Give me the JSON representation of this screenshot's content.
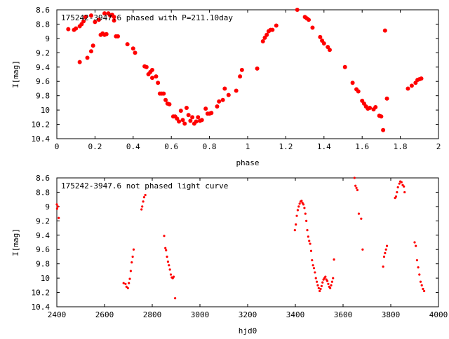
{
  "chart_data": [
    {
      "type": "scatter",
      "title": "175242-3947.6 phased with P=211.10day",
      "xlabel": "phase",
      "ylabel": "I[mag]",
      "xlim": [
        0,
        2
      ],
      "ylim": [
        10.4,
        8.6
      ],
      "y_inverted": true,
      "xticks": [
        0,
        0.2,
        0.4,
        0.6,
        0.8,
        1,
        1.2,
        1.4,
        1.6,
        1.8,
        2
      ],
      "xtick_labels": [
        "0",
        "0.2",
        "0.4",
        "0.6",
        "0.8",
        "1",
        "1.2",
        "1.4",
        "1.6",
        "1.8",
        "2"
      ],
      "yticks": [
        8.6,
        8.8,
        9,
        9.2,
        9.4,
        9.6,
        9.8,
        10,
        10.2,
        10.4
      ],
      "ytick_labels": [
        "8.6",
        "8.8",
        "9",
        "9.2",
        "9.4",
        "9.6",
        "9.8",
        "10",
        "10.2",
        "10.4"
      ],
      "grid": false,
      "marker": "filled-circle",
      "color": "#ff0000",
      "series": [
        {
          "x": [
            0.06,
            0.09,
            0.1,
            0.12,
            0.12,
            0.13,
            0.14,
            0.15,
            0.16,
            0.18,
            0.18,
            0.19,
            0.2,
            0.22,
            0.23,
            0.24,
            0.25,
            0.25,
            0.26,
            0.27,
            0.28,
            0.29,
            0.3,
            0.3,
            0.31,
            0.32,
            0.37,
            0.4,
            0.41,
            0.46,
            0.47,
            0.48,
            0.49,
            0.5,
            0.5,
            0.52,
            0.53,
            0.54,
            0.55,
            0.56,
            0.57,
            0.58,
            0.59,
            0.61,
            0.62,
            0.63,
            0.64,
            0.65,
            0.66,
            0.67,
            0.68,
            0.69,
            0.7,
            0.71,
            0.72,
            0.73,
            0.74,
            0.75,
            0.76,
            0.78,
            0.79,
            0.8,
            0.81,
            0.84,
            0.85,
            0.87,
            0.88,
            0.9,
            0.94,
            0.96,
            0.97,
            1.05,
            1.08,
            1.09,
            1.1,
            1.11,
            1.12,
            1.13,
            1.15,
            1.26,
            1.3,
            1.31,
            1.32,
            1.34,
            1.38,
            1.39,
            1.4,
            1.42,
            1.43,
            1.51,
            1.55,
            1.57,
            1.58,
            1.6,
            1.61,
            1.62,
            1.63,
            1.64,
            1.66,
            1.67,
            1.69,
            1.7,
            1.71,
            1.72,
            1.73,
            1.84,
            1.86,
            1.88,
            1.89,
            1.9,
            1.91
          ],
          "y": [
            8.87,
            8.88,
            8.86,
            9.33,
            8.83,
            8.8,
            8.76,
            8.7,
            9.27,
            8.68,
            9.18,
            9.1,
            8.77,
            8.74,
            8.95,
            8.93,
            8.95,
            8.65,
            8.94,
            8.65,
            8.68,
            8.67,
            8.7,
            8.75,
            8.97,
            8.97,
            9.08,
            9.14,
            9.2,
            9.39,
            9.4,
            9.5,
            9.47,
            9.55,
            9.44,
            9.53,
            9.62,
            9.77,
            9.77,
            9.77,
            9.86,
            9.91,
            9.92,
            10.09,
            10.09,
            10.12,
            10.16,
            10.01,
            10.14,
            10.19,
            9.97,
            10.07,
            10.15,
            10.1,
            10.19,
            10.16,
            10.1,
            10.15,
            10.14,
            9.98,
            10.05,
            10.05,
            10.04,
            9.95,
            9.88,
            9.86,
            9.7,
            9.79,
            9.73,
            9.53,
            9.44,
            9.42,
            9.04,
            8.99,
            8.95,
            8.9,
            8.88,
            8.88,
            8.82,
            8.6,
            8.7,
            8.72,
            8.74,
            8.85,
            8.98,
            9.03,
            9.07,
            9.12,
            9.16,
            9.4,
            9.62,
            9.71,
            9.74,
            9.87,
            9.91,
            9.95,
            9.98,
            9.97,
            9.99,
            9.96,
            10.08,
            10.09,
            10.28,
            8.89,
            9.84,
            9.7,
            9.66,
            9.62,
            9.58,
            9.57,
            9.56
          ]
        }
      ]
    },
    {
      "type": "scatter",
      "title": "175242-3947.6 not phased light curve",
      "xlabel": "hjd0",
      "ylabel": "I[mag]",
      "xlim": [
        2400,
        4000
      ],
      "ylim": [
        10.4,
        8.6
      ],
      "y_inverted": true,
      "xticks": [
        2400,
        2600,
        2800,
        3000,
        3200,
        3400,
        3600,
        3800,
        4000
      ],
      "xtick_labels": [
        "2400",
        "2600",
        "2800",
        "3000",
        "3200",
        "3400",
        "3600",
        "3800",
        "4000"
      ],
      "yticks": [
        8.6,
        8.8,
        9,
        9.2,
        9.4,
        9.6,
        9.8,
        10,
        10.2,
        10.4
      ],
      "ytick_labels": [
        "8.6",
        "8.8",
        "9",
        "9.2",
        "9.4",
        "9.6",
        "9.8",
        "10",
        "10.2",
        "10.4"
      ],
      "grid": false,
      "marker": "small-dot",
      "color": "#ff0000",
      "series": [
        {
          "x": [
            2400,
            2401,
            2404,
            2408,
            2680,
            2688,
            2692,
            2698,
            2702,
            2706,
            2710,
            2714,
            2718,
            2722,
            2755,
            2758,
            2762,
            2766,
            2771,
            2850,
            2855,
            2858,
            2862,
            2866,
            2870,
            2874,
            2878,
            2882,
            2886,
            2890,
            2896,
            3398,
            3402,
            3406,
            3410,
            3414,
            3418,
            3422,
            3426,
            3430,
            3434,
            3438,
            3442,
            3446,
            3450,
            3454,
            3458,
            3462,
            3466,
            3470,
            3474,
            3478,
            3482,
            3486,
            3490,
            3494,
            3498,
            3502,
            3506,
            3510,
            3514,
            3518,
            3522,
            3526,
            3530,
            3534,
            3538,
            3542,
            3546,
            3550,
            3554,
            3558,
            3562,
            3648,
            3652,
            3656,
            3660,
            3666,
            3676,
            3682,
            3768,
            3772,
            3776,
            3780,
            3784,
            3818,
            3822,
            3826,
            3830,
            3836,
            3840,
            3845,
            3850,
            3855,
            3858,
            3900,
            3905,
            3910,
            3915,
            3920,
            3925,
            3930,
            3935,
            3940
          ],
          "y": [
            8.97,
            9.03,
            9.0,
            9.16,
            10.07,
            10.08,
            10.12,
            10.14,
            10.07,
            10.01,
            9.9,
            9.78,
            9.7,
            9.6,
            9.04,
            9.0,
            8.93,
            8.87,
            8.84,
            9.41,
            9.58,
            9.61,
            9.7,
            9.77,
            9.82,
            9.88,
            9.95,
            9.99,
            10.0,
            9.98,
            10.28,
            9.33,
            9.25,
            9.13,
            9.05,
            9.0,
            8.96,
            8.93,
            8.92,
            8.95,
            8.97,
            9.02,
            9.1,
            9.2,
            9.33,
            9.42,
            9.48,
            9.52,
            9.62,
            9.75,
            9.82,
            9.86,
            9.92,
            10.0,
            10.05,
            10.1,
            10.14,
            10.18,
            10.15,
            10.11,
            10.06,
            10.02,
            10.0,
            9.98,
            10.02,
            10.04,
            10.08,
            10.12,
            10.14,
            10.1,
            10.05,
            10.0,
            9.74,
            8.6,
            8.71,
            8.74,
            8.77,
            9.1,
            9.17,
            9.6,
            9.84,
            9.7,
            9.65,
            9.6,
            9.55,
            8.88,
            8.86,
            8.8,
            8.73,
            8.68,
            8.65,
            8.66,
            8.7,
            8.72,
            8.8,
            9.5,
            9.55,
            9.75,
            9.85,
            9.95,
            10.05,
            10.1,
            10.15,
            10.18
          ]
        }
      ]
    }
  ]
}
